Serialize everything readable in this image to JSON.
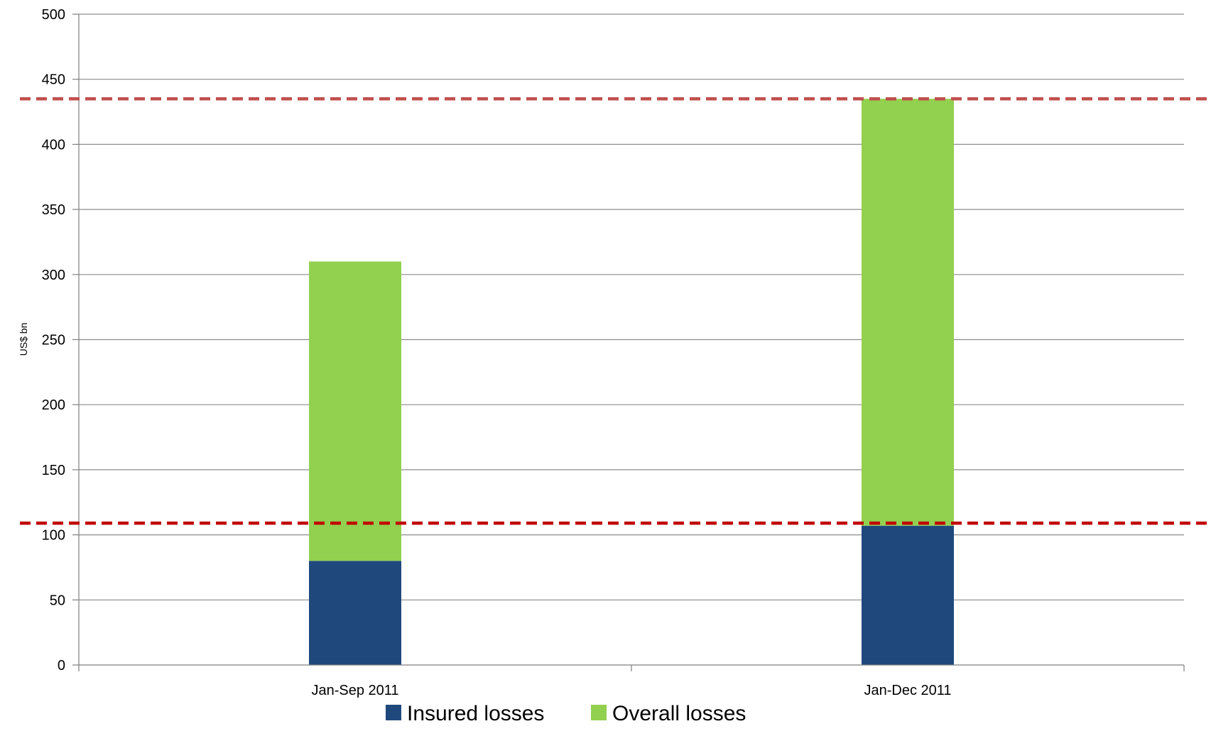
{
  "chart_data": {
    "type": "bar",
    "stacked": true,
    "title": "",
    "xlabel": "",
    "ylabel": "US$ bn",
    "ylim": [
      0,
      500
    ],
    "yticks": [
      0,
      50,
      100,
      150,
      200,
      250,
      300,
      350,
      400,
      450,
      500
    ],
    "grid": true,
    "categories": [
      "Jan-Sep 2011",
      "Jan-Dec 2011"
    ],
    "series": [
      {
        "name": "Insured losses",
        "values": [
          80,
          107
        ],
        "color": "#1f497d"
      },
      {
        "name": "Overall losses",
        "values": [
          230,
          328
        ],
        "color": "#92d050"
      }
    ],
    "reference_lines": [
      {
        "value": 435,
        "color": "#c0504d",
        "style": "dashed"
      },
      {
        "value": 109,
        "color": "#c00000",
        "style": "dashed"
      }
    ],
    "legend_position": "bottom"
  }
}
